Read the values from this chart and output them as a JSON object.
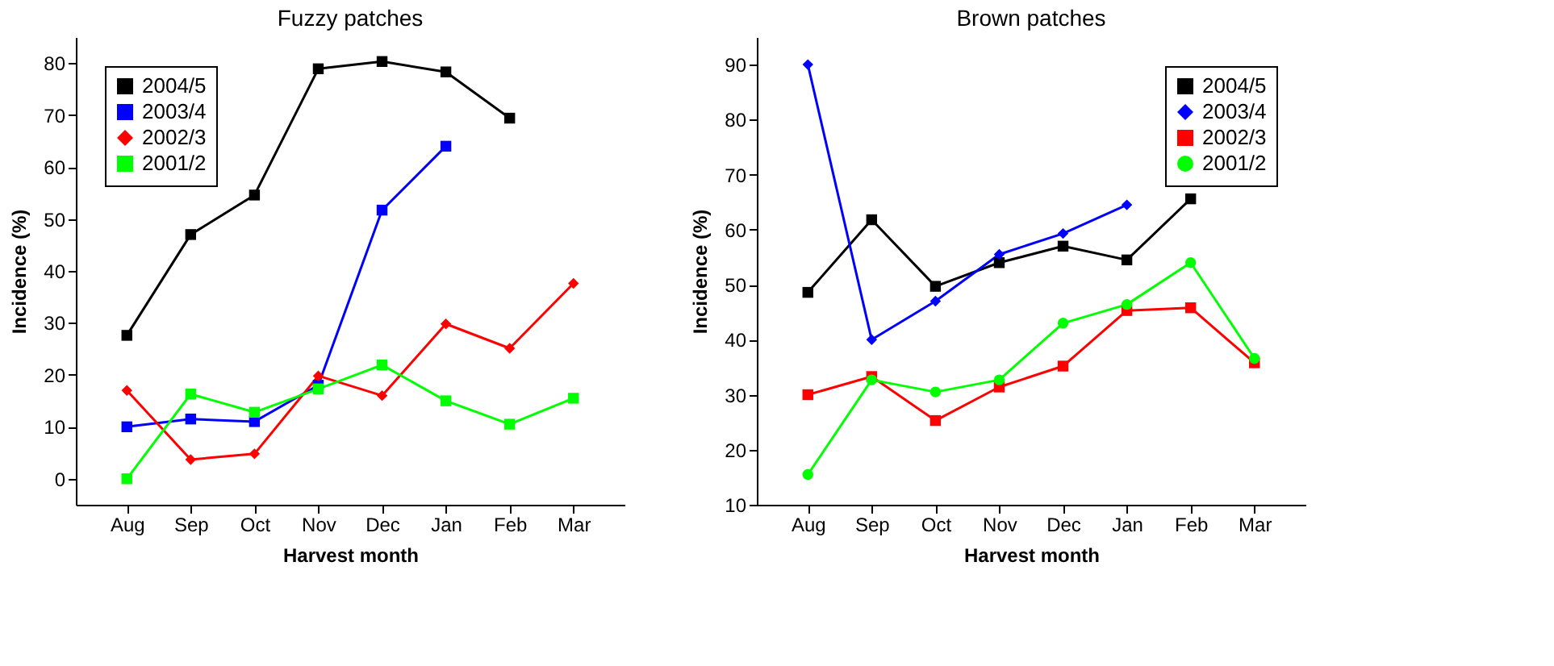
{
  "chart_data": [
    {
      "type": "line",
      "title": "Fuzzy patches",
      "xlabel": "Harvest month",
      "ylabel": "Incidence (%)",
      "categories": [
        "Aug",
        "Sep",
        "Oct",
        "Nov",
        "Dec",
        "Jan",
        "Feb",
        "Mar"
      ],
      "ylim": [
        -5,
        85
      ],
      "yticks": [
        0,
        10,
        20,
        30,
        40,
        50,
        60,
        70,
        80
      ],
      "grid": false,
      "legend": "top left",
      "line_style": "solid",
      "series": [
        {
          "name": "2004/5",
          "color": "#000000",
          "marker": "square",
          "values": [
            27.6,
            47,
            54.6,
            78.9,
            80.3,
            78.3,
            69.4,
            null
          ]
        },
        {
          "name": "2003/4",
          "color": "#0000ff",
          "marker": "square",
          "values": [
            10,
            11.5,
            11,
            18,
            51.7,
            64,
            null,
            null
          ]
        },
        {
          "name": "2002/3",
          "color": "#ff0000",
          "marker": "diamond",
          "values": [
            17,
            3.7,
            4.8,
            19.8,
            16,
            29.8,
            25.1,
            37.6
          ]
        },
        {
          "name": "2001/2",
          "color": "#00ff00",
          "marker": "square",
          "values": [
            0,
            16.3,
            12.8,
            17.3,
            21.9,
            15,
            10.5,
            15.5
          ]
        }
      ]
    },
    {
      "type": "line",
      "title": "Brown patches",
      "xlabel": "Harvest month",
      "ylabel": "Incidence (%)",
      "categories": [
        "Aug",
        "Sep",
        "Oct",
        "Nov",
        "Dec",
        "Jan",
        "Feb",
        "Mar"
      ],
      "ylim": [
        10,
        95
      ],
      "yticks": [
        10,
        20,
        30,
        40,
        50,
        60,
        70,
        80,
        90
      ],
      "grid": false,
      "legend": "top right",
      "line_style": "solid",
      "series": [
        {
          "name": "2004/5",
          "color": "#000000",
          "marker": "square",
          "values": [
            48.6,
            61.8,
            49.7,
            54,
            57,
            54.5,
            65.6,
            null
          ]
        },
        {
          "name": "2003/4",
          "color": "#0000ff",
          "marker": "diamond",
          "values": [
            90,
            40,
            47,
            55.5,
            59.3,
            64.5,
            null,
            null
          ]
        },
        {
          "name": "2002/3",
          "color": "#ff0000",
          "marker": "square",
          "values": [
            30,
            33.3,
            25.3,
            31.4,
            35.2,
            45.3,
            45.8,
            35.8
          ]
        },
        {
          "name": "2001/2",
          "color": "#00ff00",
          "marker": "circle",
          "values": [
            15.5,
            32.7,
            30.5,
            32.7,
            43,
            46.4,
            54,
            36.6
          ]
        }
      ]
    }
  ]
}
